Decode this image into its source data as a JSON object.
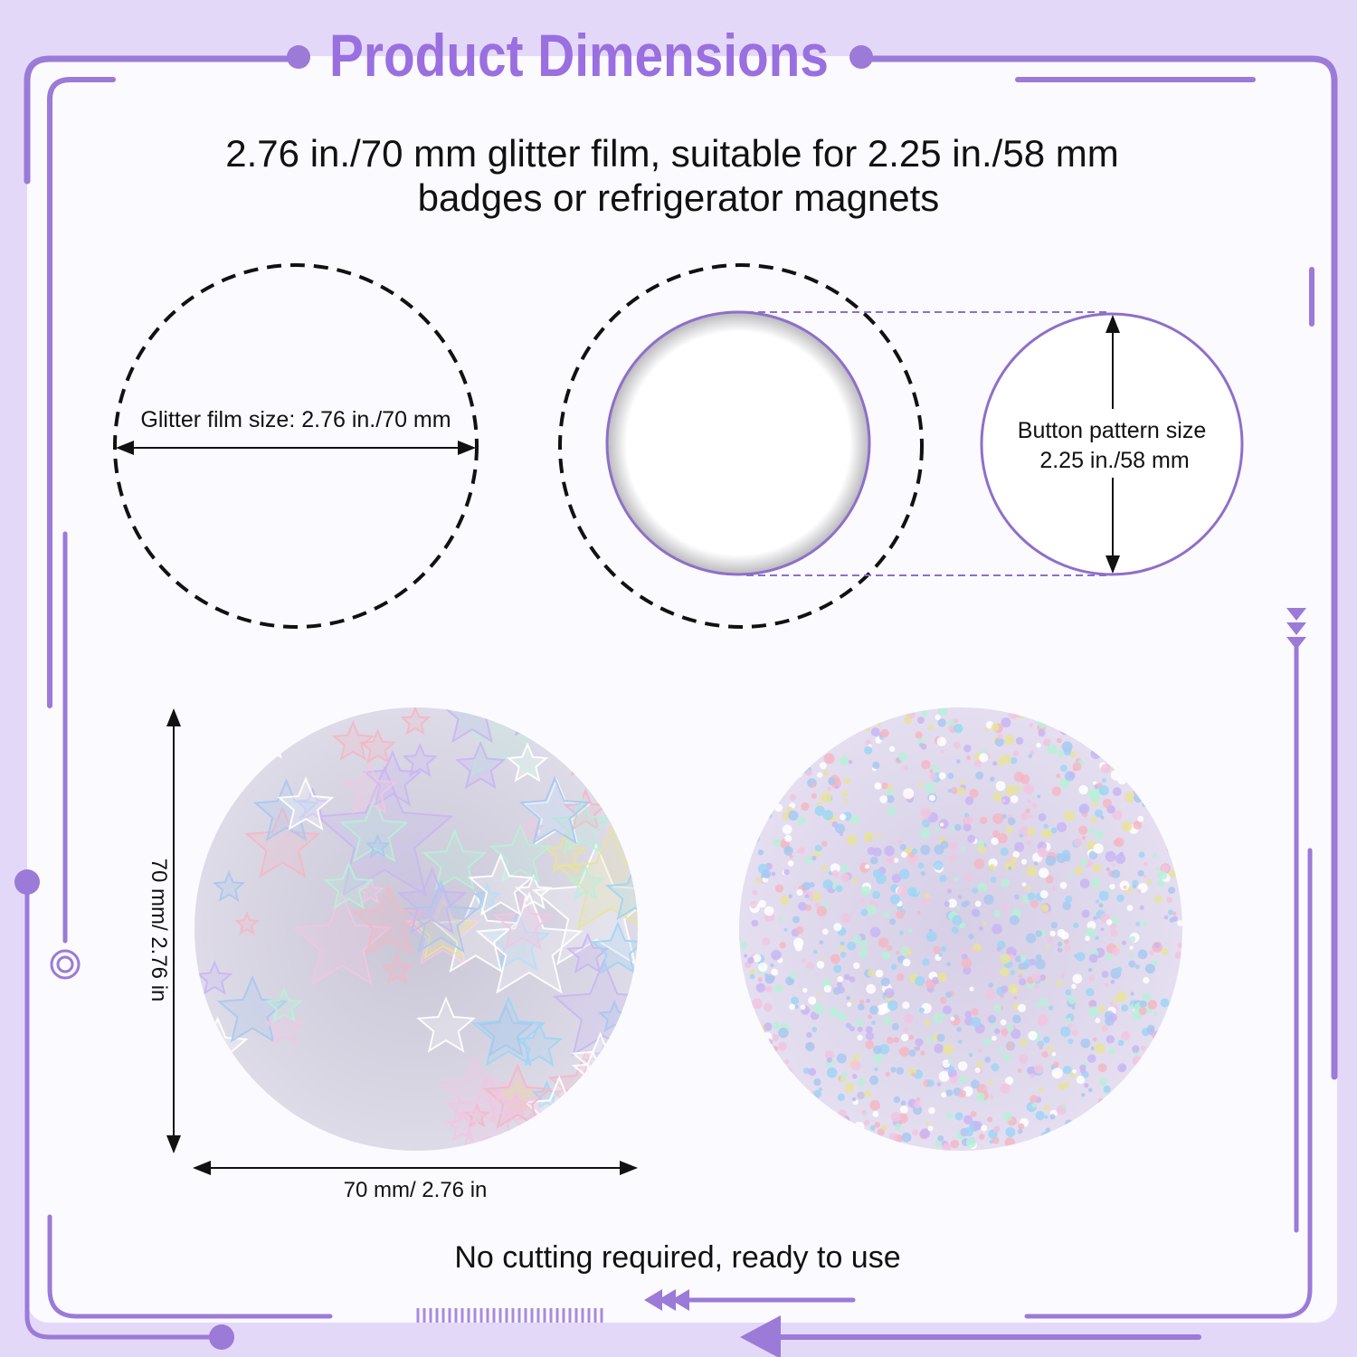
{
  "header": {
    "title": "Product Dimensions"
  },
  "intro": {
    "lines": [
      "2.76 in./70 mm glitter film, suitable for 2.25 in./58 mm",
      "badges or refrigerator magnets"
    ]
  },
  "diagram": {
    "film_label": "Glitter film size: 2.76 in./70 mm",
    "button_label": [
      "Button pattern size",
      "2.25 in./58 mm"
    ]
  },
  "samples": {
    "height_label": "70 mm/ 2.76 in",
    "width_label": "70 mm/ 2.76 in"
  },
  "footer": {
    "note": "No cutting required, ready to use"
  }
}
